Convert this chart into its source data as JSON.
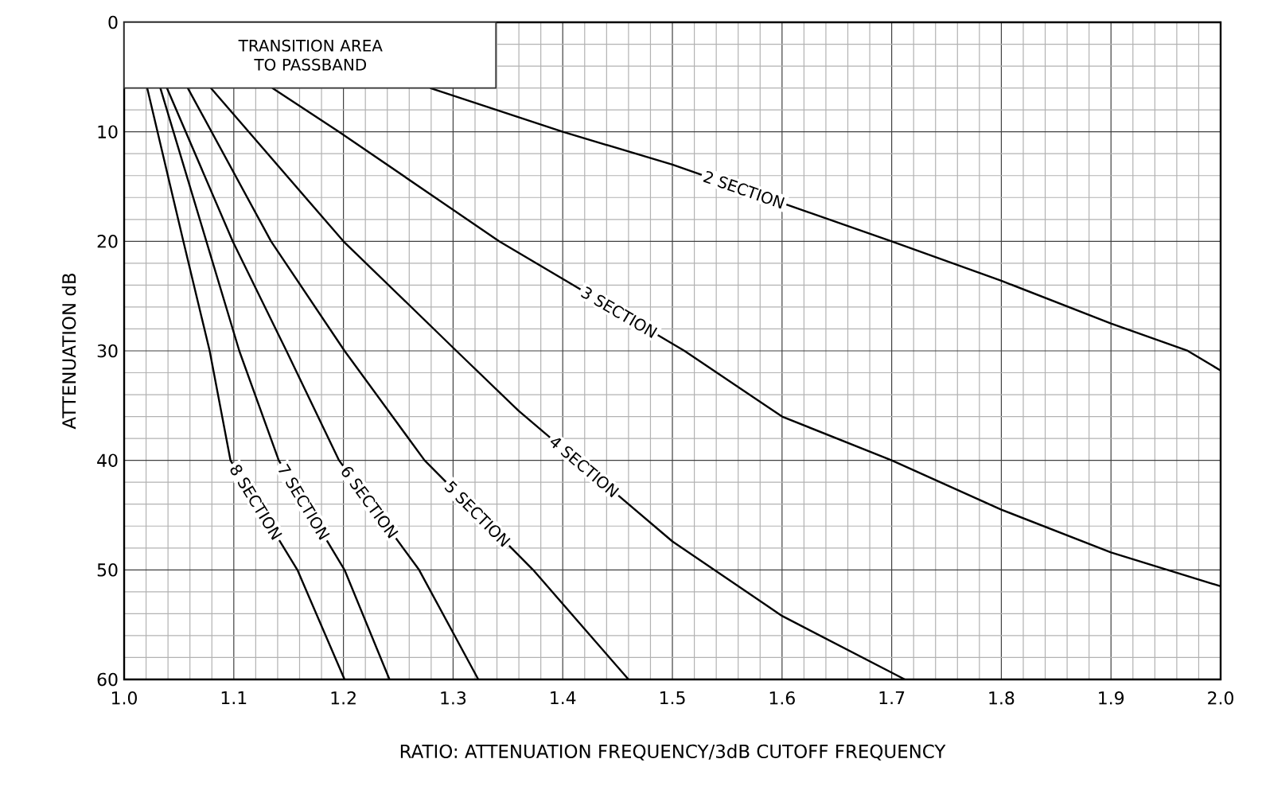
{
  "chart_data": {
    "type": "line",
    "xlabel": "RATIO: ATTENUATION FREQUENCY/3dB CUTOFF FREQUENCY",
    "ylabel": "ATTENUATION dB",
    "bands": [
      {
        "axis": "y",
        "from": 0,
        "to": 6,
        "label": "TRANSITION AREA TO PASSBAND",
        "color": "#ffffff"
      }
    ],
    "xlim": [
      1.0,
      2.0
    ],
    "ylim": [
      60,
      0
    ],
    "xticks": [
      {
        "value": 1.0,
        "label": "1.0"
      },
      {
        "value": 1.1,
        "label": "1.1"
      },
      {
        "value": 1.2,
        "label": "1.2"
      },
      {
        "value": 1.3,
        "label": "1.3"
      },
      {
        "value": 1.4,
        "label": "1.4"
      },
      {
        "value": 1.5,
        "label": "1.5"
      },
      {
        "value": 1.6,
        "label": "1.6"
      },
      {
        "value": 1.7,
        "label": "1.7"
      },
      {
        "value": 1.8,
        "label": "1.8"
      },
      {
        "value": 1.9,
        "label": "1.9"
      },
      {
        "value": 2.0,
        "label": "2.0"
      }
    ],
    "yticks": [
      0,
      10,
      20,
      30,
      40,
      50,
      60
    ],
    "grid": true,
    "marker": "none",
    "line_style": "solid",
    "series": [
      {
        "name": "2 SECTION",
        "color": "#000000",
        "x": [
          1.279,
          1.4,
          1.5,
          1.7,
          1.8,
          1.9,
          1.97,
          2.0
        ],
        "values": [
          6,
          10,
          13,
          20,
          23.6,
          27.5,
          30,
          31.8
        ]
      },
      {
        "name": "3 SECTION",
        "color": "#000000",
        "x": [
          1.135,
          1.196,
          1.342,
          1.511,
          1.6,
          1.7,
          1.8,
          1.9,
          2.0
        ],
        "values": [
          6,
          10,
          20,
          30,
          36,
          40,
          44.5,
          48.4,
          51.5
        ]
      },
      {
        "name": "4 SECTION",
        "color": "#000000",
        "x": [
          1.079,
          1.2,
          1.303,
          1.36,
          1.5,
          1.6,
          1.712
        ],
        "values": [
          6,
          20,
          30,
          35.5,
          47.4,
          54.2,
          60
        ]
      },
      {
        "name": "5 SECTION",
        "color": "#000000",
        "x": [
          1.058,
          1.134,
          1.201,
          1.274,
          1.373,
          1.46
        ],
        "values": [
          6,
          20,
          30,
          40,
          50,
          60
        ]
      },
      {
        "name": "6 SECTION",
        "color": "#000000",
        "x": [
          1.039,
          1.099,
          1.148,
          1.196,
          1.269,
          1.323
        ],
        "values": [
          6,
          20,
          30,
          40,
          50,
          60
        ]
      },
      {
        "name": "7 SECTION",
        "color": "#000000",
        "x": [
          1.033,
          1.075,
          1.105,
          1.141,
          1.201,
          1.242
        ],
        "values": [
          6,
          20,
          30,
          40,
          50,
          60
        ]
      },
      {
        "name": "8 SECTION",
        "color": "#000000",
        "x": [
          1.021,
          1.054,
          1.078,
          1.097,
          1.158,
          1.201
        ],
        "values": [
          6,
          20,
          30,
          40,
          50,
          60
        ]
      }
    ]
  }
}
